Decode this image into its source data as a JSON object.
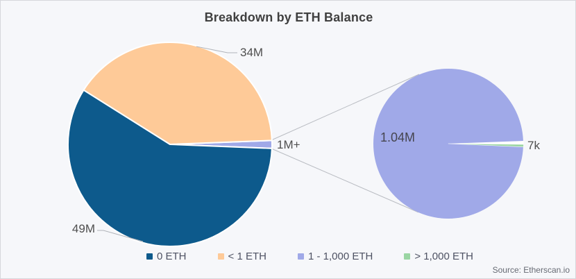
{
  "title": "Breakdown by ETH Balance",
  "source": "Source: Etherscan.io",
  "chart_data": {
    "type": "pie",
    "title": "Breakdown by ETH Balance",
    "categories": [
      "0 ETH",
      "< 1 ETH",
      "1 - 1,000 ETH",
      "> 1,000 ETH"
    ],
    "values": [
      49000000,
      34000000,
      1040000,
      7000
    ],
    "value_labels": [
      "49M",
      "34M",
      "1M+",
      "7k"
    ],
    "colors": [
      "#0d5a8c",
      "#feca98",
      "#a0a9e8",
      "#9ad5a3"
    ],
    "legend_position": "bottom",
    "zoom_inset": {
      "labels": [
        "1.04M",
        "7k"
      ],
      "values": [
        1040000,
        7000
      ]
    }
  }
}
